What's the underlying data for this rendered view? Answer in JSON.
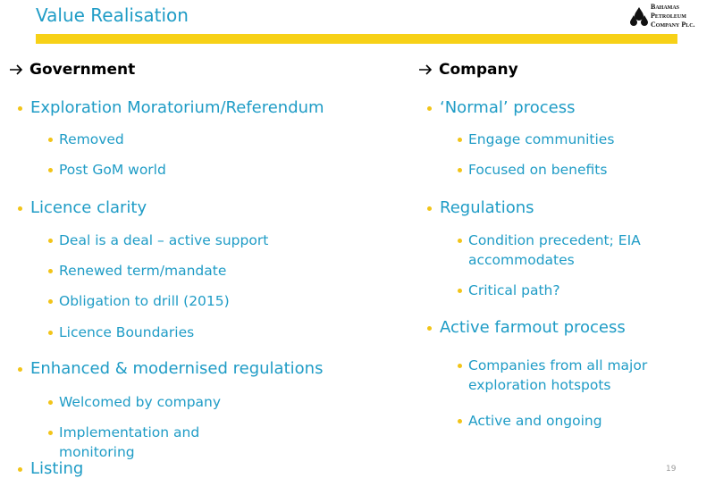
{
  "header": {
    "title": "Value Realisation",
    "logo": [
      "Bahamas",
      "Petroleum",
      "Company plc."
    ]
  },
  "columns": [
    {
      "heading": "Government",
      "items": [
        {
          "text": "Exploration Moratorium/Referendum",
          "subitems": [
            "Removed",
            "Post GoM world"
          ]
        },
        {
          "text": "Licence clarity",
          "subitems": [
            "Deal is a deal – active support",
            "Renewed term/mandate",
            "Obligation to drill (2015)",
            "Licence Boundaries"
          ]
        },
        {
          "text": "Enhanced & modernised regulations",
          "subitems": [
            "Welcomed by company",
            "Implementation and monitoring"
          ]
        },
        {
          "text": "Listing",
          "subitems": []
        }
      ]
    },
    {
      "heading": "Company",
      "items": [
        {
          "text": "‘Normal’ process",
          "subitems": [
            "Engage communities",
            "Focused on benefits"
          ]
        },
        {
          "text": "Regulations",
          "subitems": [
            "Condition precedent; EIA accommodates",
            "Critical path?"
          ]
        },
        {
          "text": "Active farmout process",
          "subitems": [
            "Companies from all major exploration hotspots",
            "Active and ongoing"
          ]
        }
      ]
    }
  ],
  "page_number": "19"
}
